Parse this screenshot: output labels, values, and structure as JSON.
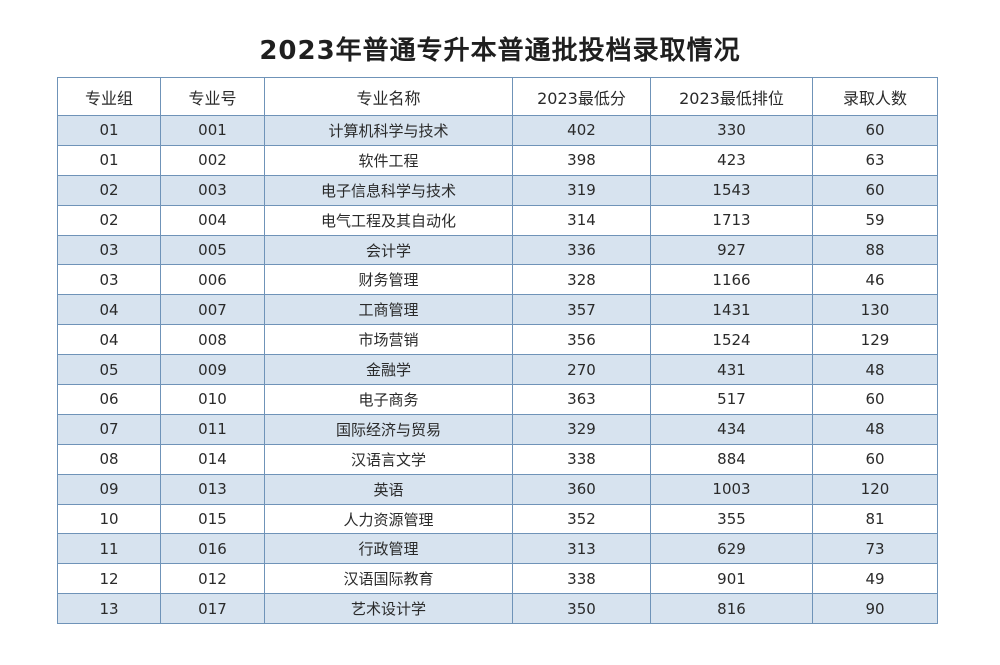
{
  "title": "2023年普通专升本普通批投档录取情况",
  "headers": [
    "专业组",
    "专业号",
    "专业名称",
    "2023最低分",
    "2023最低排位",
    "录取人数"
  ],
  "rows": [
    [
      "01",
      "001",
      "计算机科学与技术",
      "402",
      "330",
      "60"
    ],
    [
      "01",
      "002",
      "软件工程",
      "398",
      "423",
      "63"
    ],
    [
      "02",
      "003",
      "电子信息科学与技术",
      "319",
      "1543",
      "60"
    ],
    [
      "02",
      "004",
      "电气工程及其自动化",
      "314",
      "1713",
      "59"
    ],
    [
      "03",
      "005",
      "会计学",
      "336",
      "927",
      "88"
    ],
    [
      "03",
      "006",
      "财务管理",
      "328",
      "1166",
      "46"
    ],
    [
      "04",
      "007",
      "工商管理",
      "357",
      "1431",
      "130"
    ],
    [
      "04",
      "008",
      "市场营销",
      "356",
      "1524",
      "129"
    ],
    [
      "05",
      "009",
      "金融学",
      "270",
      "431",
      "48"
    ],
    [
      "06",
      "010",
      "电子商务",
      "363",
      "517",
      "60"
    ],
    [
      "07",
      "011",
      "国际经济与贸易",
      "329",
      "434",
      "48"
    ],
    [
      "08",
      "014",
      "汉语言文学",
      "338",
      "884",
      "60"
    ],
    [
      "09",
      "013",
      "英语",
      "360",
      "1003",
      "120"
    ],
    [
      "10",
      "015",
      "人力资源管理",
      "352",
      "355",
      "81"
    ],
    [
      "11",
      "016",
      "行政管理",
      "313",
      "629",
      "73"
    ],
    [
      "12",
      "012",
      "汉语国际教育",
      "338",
      "901",
      "49"
    ],
    [
      "13",
      "017",
      "艺术设计学",
      "350",
      "816",
      "90"
    ]
  ],
  "colors": {
    "border": "#6f93b8",
    "row_shade": "#d7e3ef",
    "row_plain": "#ffffff"
  }
}
